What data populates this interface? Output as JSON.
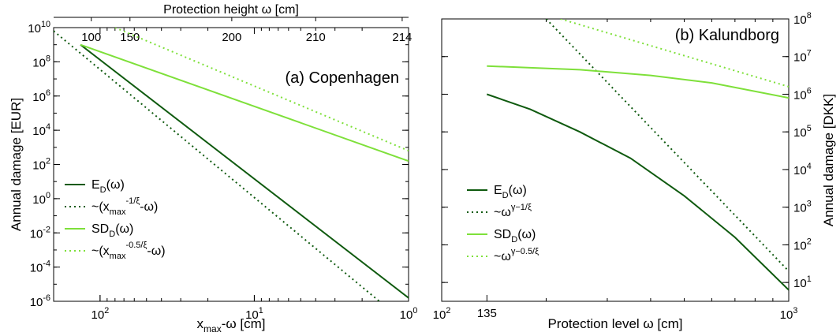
{
  "colors": {
    "dark_green": "#0f5a0f",
    "light_green": "#7ee03a",
    "frame": "#000000"
  },
  "chart_data": [
    {
      "type": "line",
      "title": "(a) Copenhagen",
      "xlabel_main": "x",
      "xlabel_sub": "max",
      "xlabel_tail": "-ω  [cm]",
      "ylabel": "Annual damage  [EUR]",
      "top_axis_label": "Protection height ω  [cm]",
      "x_scale": "log",
      "x_reversed": true,
      "xlim": [
        200,
        1
      ],
      "y_scale": "log",
      "ylim_exp": [
        -6,
        10
      ],
      "x_ticks": [
        {
          "value": 100,
          "base": "10",
          "exp": "2"
        },
        {
          "value": 10,
          "base": "10",
          "exp": "1"
        },
        {
          "value": 1,
          "base": "10",
          "exp": "0"
        }
      ],
      "y_ticks": [
        {
          "exp_value": 10,
          "base": "10",
          "exp": "10"
        },
        {
          "exp_value": 8,
          "base": "10",
          "exp": "8"
        },
        {
          "exp_value": 6,
          "base": "10",
          "exp": "6"
        },
        {
          "exp_value": 4,
          "base": "10",
          "exp": "4"
        },
        {
          "exp_value": 2,
          "base": "10",
          "exp": "2"
        },
        {
          "exp_value": 0,
          "base": "10",
          "exp": "0"
        },
        {
          "exp_value": -2,
          "base": "10",
          "exp": "-2"
        },
        {
          "exp_value": -4,
          "base": "10",
          "exp": "-4"
        },
        {
          "exp_value": -6,
          "base": "10",
          "exp": "-6"
        }
      ],
      "top_ticks": [
        {
          "label": "100",
          "x_dist": 114
        },
        {
          "label": "150",
          "x_dist": 64
        },
        {
          "label": "200",
          "x_dist": 14
        },
        {
          "label": "210",
          "x_dist": 4
        },
        {
          "label": "214",
          "x_dist": 1.1
        }
      ],
      "series": [
        {
          "key": "ed",
          "color": "dark_green",
          "dash": false,
          "points_exp": [
            [
              134,
              9.0
            ],
            [
              1,
              -5.8
            ]
          ]
        },
        {
          "key": "ed_fit",
          "color": "dark_green",
          "dash": true,
          "points_exp": [
            [
              200,
              9.8
            ],
            [
              1.5,
              -6.1
            ]
          ]
        },
        {
          "key": "sd",
          "color": "light_green",
          "dash": false,
          "points_exp": [
            [
              134,
              9.0
            ],
            [
              1,
              2.2
            ]
          ]
        },
        {
          "key": "sd_fit",
          "color": "light_green",
          "dash": true,
          "points_exp": [
            [
              80,
              10.0
            ],
            [
              1,
              2.8
            ]
          ]
        }
      ],
      "legend": [
        {
          "series": "ed",
          "main": "E",
          "sub": "D",
          "sup": "",
          "tail": "(ω)"
        },
        {
          "series": "ed_fit",
          "main": "~(x",
          "sub": "max",
          "sup": "-1/ξ",
          "tail": "-ω)"
        },
        {
          "series": "sd",
          "main": "SD",
          "sub": "D",
          "sup": "",
          "tail": "(ω)"
        },
        {
          "series": "sd_fit",
          "main": "~(x",
          "sub": "max",
          "sup": "-0.5/ξ",
          "tail": "-ω)"
        }
      ]
    },
    {
      "type": "line",
      "title": "(b) Kalundborg",
      "xlabel": "Protection level  ω  [cm]",
      "ylabel": "Annual damage  [DKK]",
      "x_scale": "log",
      "xlim": [
        100,
        1000
      ],
      "y_scale": "log",
      "ylim_exp": [
        0.5,
        8
      ],
      "x_ticks": [
        {
          "value": 100,
          "base": "10",
          "exp": "2",
          "plain": ""
        },
        {
          "value": 135,
          "base": "",
          "exp": "",
          "plain": "135"
        },
        {
          "value": 1000,
          "base": "10",
          "exp": "3",
          "plain": ""
        }
      ],
      "y_ticks": [
        {
          "exp_value": 8,
          "base": "10",
          "exp": "8"
        },
        {
          "exp_value": 7,
          "base": "10",
          "exp": "7"
        },
        {
          "exp_value": 6,
          "base": "10",
          "exp": "6"
        },
        {
          "exp_value": 5,
          "base": "10",
          "exp": "5"
        },
        {
          "exp_value": 4,
          "base": "10",
          "exp": "4"
        },
        {
          "exp_value": 3,
          "base": "10",
          "exp": "3"
        },
        {
          "exp_value": 2,
          "base": "10",
          "exp": "2"
        },
        {
          "exp_value": 1,
          "base": "10",
          "exp": "1"
        }
      ],
      "series": [
        {
          "key": "ed",
          "color": "dark_green",
          "dash": false,
          "points_exp": [
            [
              135,
              6.0
            ],
            [
              180,
              5.6
            ],
            [
              250,
              5.0
            ],
            [
              350,
              4.3
            ],
            [
              500,
              3.3
            ],
            [
              700,
              2.2
            ],
            [
              1000,
              0.8
            ]
          ]
        },
        {
          "key": "ed_fit",
          "color": "dark_green",
          "dash": true,
          "points_exp": [
            [
              200,
              8.0
            ],
            [
              1000,
              1.3
            ]
          ]
        },
        {
          "key": "sd",
          "color": "light_green",
          "dash": false,
          "points_exp": [
            [
              135,
              6.75
            ],
            [
              250,
              6.65
            ],
            [
              400,
              6.5
            ],
            [
              600,
              6.3
            ],
            [
              1000,
              5.9
            ]
          ]
        },
        {
          "key": "sd_fit",
          "color": "light_green",
          "dash": true,
          "points_exp": [
            [
              220,
              8.0
            ],
            [
              1000,
              6.2
            ]
          ]
        }
      ],
      "legend": [
        {
          "series": "ed",
          "main": "E",
          "sub": "D",
          "sup": "",
          "tail": "(ω)"
        },
        {
          "series": "ed_fit",
          "main": "~ω",
          "sub": "",
          "sup": "γ−1/ξ",
          "tail": ""
        },
        {
          "series": "sd",
          "main": "SD",
          "sub": "D",
          "sup": "",
          "tail": "(ω)"
        },
        {
          "series": "sd_fit",
          "main": "~ω",
          "sub": "",
          "sup": "γ−0.5/ξ",
          "tail": ""
        }
      ]
    }
  ]
}
